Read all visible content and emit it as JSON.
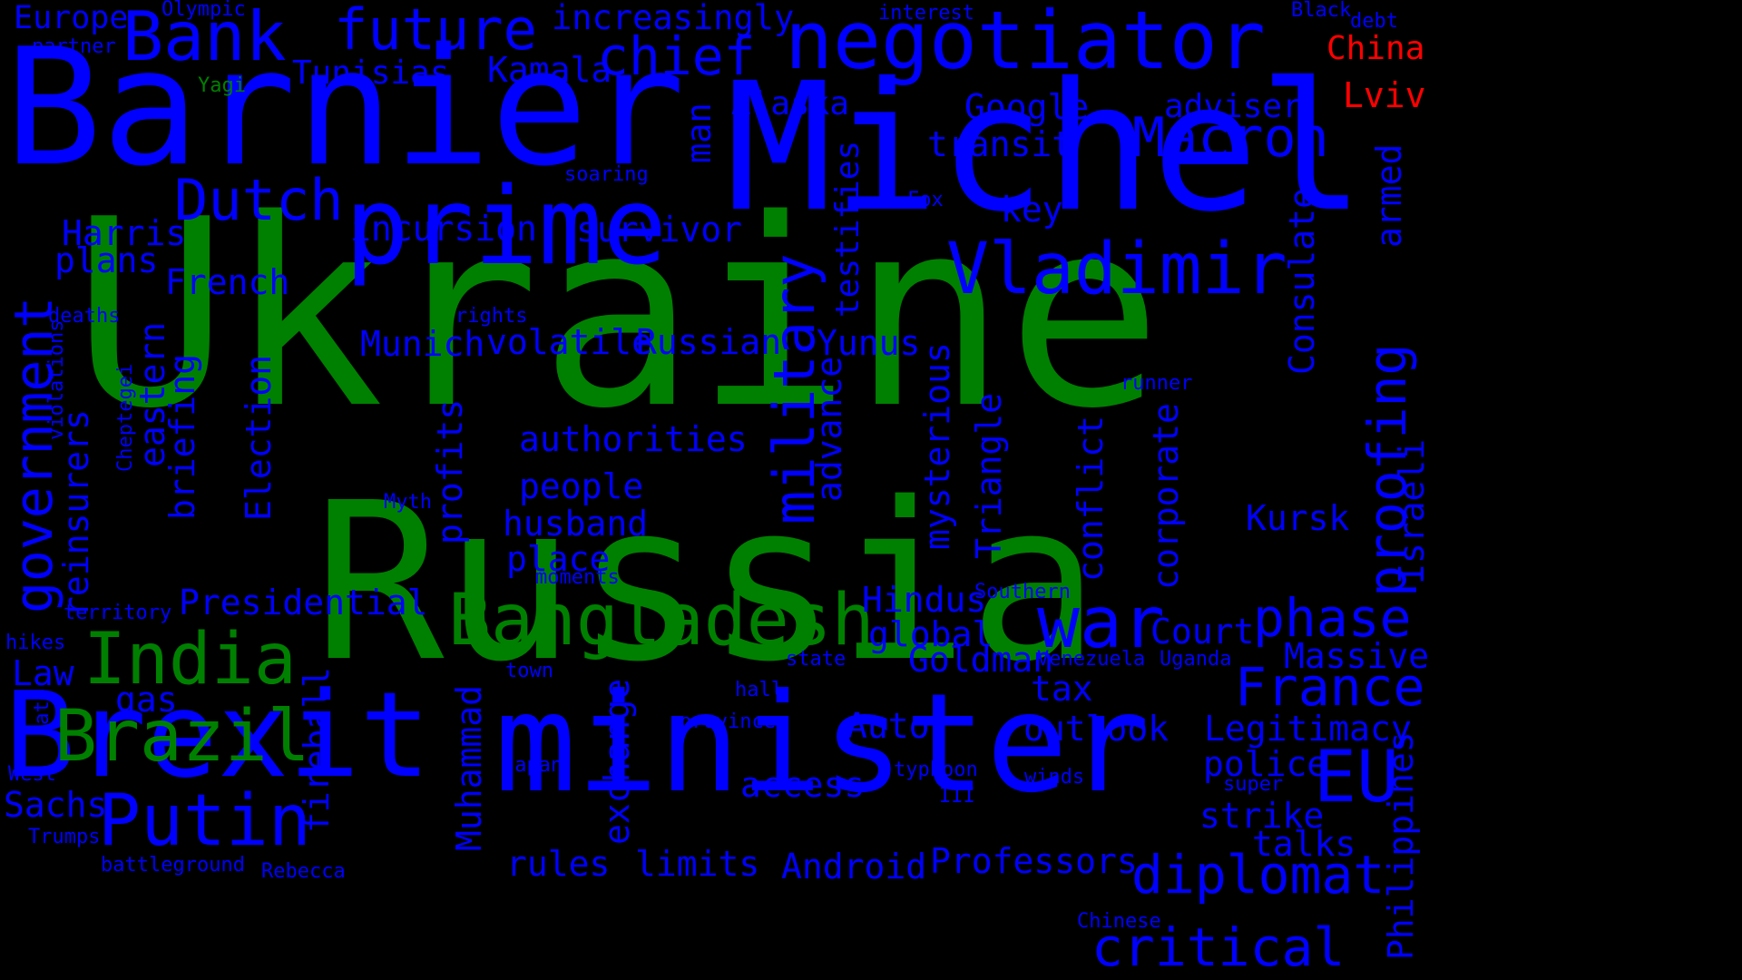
{
  "colors": {
    "background": "#000000",
    "blue": "#0000ff",
    "green": "#008000",
    "red": "#ff0000"
  },
  "words": [
    {
      "text": "Ukraine",
      "color": "green"
    },
    {
      "text": "Russia",
      "color": "green"
    },
    {
      "text": "Michel",
      "color": "blue"
    },
    {
      "text": "Barnier",
      "color": "blue"
    },
    {
      "text": "Brexit",
      "color": "blue"
    },
    {
      "text": "minister",
      "color": "blue"
    },
    {
      "text": "prime",
      "color": "blue"
    },
    {
      "text": "negotiator",
      "color": "blue"
    },
    {
      "text": "Bank",
      "color": "blue"
    },
    {
      "text": "future",
      "color": "blue"
    },
    {
      "text": "chief",
      "color": "blue"
    },
    {
      "text": "Kamala",
      "color": "blue"
    },
    {
      "text": "Tunisias",
      "color": "blue"
    },
    {
      "text": "increasingly",
      "color": "blue"
    },
    {
      "text": "Europe",
      "color": "blue"
    },
    {
      "text": "Olympic",
      "color": "blue"
    },
    {
      "text": "partner",
      "color": "blue"
    },
    {
      "text": "Yagi",
      "color": "green"
    },
    {
      "text": "interest",
      "color": "blue"
    },
    {
      "text": "Black",
      "color": "blue"
    },
    {
      "text": "debt",
      "color": "blue"
    },
    {
      "text": "China",
      "color": "red"
    },
    {
      "text": "Lviv",
      "color": "red"
    },
    {
      "text": "Alaska",
      "color": "blue"
    },
    {
      "text": "Google",
      "color": "blue"
    },
    {
      "text": "adviser",
      "color": "blue"
    },
    {
      "text": "Macron",
      "color": "blue"
    },
    {
      "text": "transit",
      "color": "blue"
    },
    {
      "text": "soaring",
      "color": "blue"
    },
    {
      "text": "man",
      "color": "blue"
    },
    {
      "text": "Fox",
      "color": "blue"
    },
    {
      "text": "key",
      "color": "blue"
    },
    {
      "text": "Dutch",
      "color": "blue"
    },
    {
      "text": "Harris",
      "color": "blue"
    },
    {
      "text": "plans",
      "color": "blue"
    },
    {
      "text": "French",
      "color": "blue"
    },
    {
      "text": "incursion",
      "color": "blue"
    },
    {
      "text": "survivor",
      "color": "blue"
    },
    {
      "text": "testifies",
      "color": "blue"
    },
    {
      "text": "Vladimir",
      "color": "blue"
    },
    {
      "text": "deaths",
      "color": "blue"
    },
    {
      "text": "rights",
      "color": "blue"
    },
    {
      "text": "Munich",
      "color": "blue"
    },
    {
      "text": "volatile",
      "color": "blue"
    },
    {
      "text": "Russian",
      "color": "blue"
    },
    {
      "text": "Yunus",
      "color": "blue"
    },
    {
      "text": "runner",
      "color": "blue"
    },
    {
      "text": "military",
      "color": "blue"
    },
    {
      "text": "government",
      "color": "blue"
    },
    {
      "text": "reinsurers",
      "color": "blue"
    },
    {
      "text": "violations",
      "color": "blue"
    },
    {
      "text": "Cheptegei",
      "color": "blue"
    },
    {
      "text": "eastern",
      "color": "blue"
    },
    {
      "text": "briefing",
      "color": "blue"
    },
    {
      "text": "Election",
      "color": "blue"
    },
    {
      "text": "Myth",
      "color": "blue"
    },
    {
      "text": "profits",
      "color": "blue"
    },
    {
      "text": "authorities",
      "color": "blue"
    },
    {
      "text": "people",
      "color": "blue"
    },
    {
      "text": "husband",
      "color": "blue"
    },
    {
      "text": "place",
      "color": "blue"
    },
    {
      "text": "moments",
      "color": "blue"
    },
    {
      "text": "advance",
      "color": "blue"
    },
    {
      "text": "mysterious",
      "color": "blue"
    },
    {
      "text": "Triangle",
      "color": "blue"
    },
    {
      "text": "conflict",
      "color": "blue"
    },
    {
      "text": "corporate",
      "color": "blue"
    },
    {
      "text": "Consulate",
      "color": "blue"
    },
    {
      "text": "armed",
      "color": "blue"
    },
    {
      "text": "proofing",
      "color": "blue"
    },
    {
      "text": "Israeli",
      "color": "blue"
    },
    {
      "text": "Kursk",
      "color": "blue"
    },
    {
      "text": "Bangladesh",
      "color": "green"
    },
    {
      "text": "war",
      "color": "blue"
    },
    {
      "text": "phase",
      "color": "blue"
    },
    {
      "text": "Hindus",
      "color": "blue"
    },
    {
      "text": "Southern",
      "color": "blue"
    },
    {
      "text": "global",
      "color": "blue"
    },
    {
      "text": "Court",
      "color": "blue"
    },
    {
      "text": "territory",
      "color": "blue"
    },
    {
      "text": "Presidential",
      "color": "blue"
    },
    {
      "text": "India",
      "color": "green"
    },
    {
      "text": "hikes",
      "color": "blue"
    },
    {
      "text": "Law",
      "color": "blue"
    },
    {
      "text": "gas",
      "color": "blue"
    },
    {
      "text": "Brazil",
      "color": "green"
    },
    {
      "text": "rate",
      "color": "blue"
    },
    {
      "text": "fireball",
      "color": "blue"
    },
    {
      "text": "Muhammad",
      "color": "blue"
    },
    {
      "text": "exchange",
      "color": "blue"
    },
    {
      "text": "town",
      "color": "blue"
    },
    {
      "text": "state",
      "color": "blue"
    },
    {
      "text": "Goldman",
      "color": "blue"
    },
    {
      "text": "Venezuela",
      "color": "blue"
    },
    {
      "text": "Uganda",
      "color": "blue"
    },
    {
      "text": "Massive",
      "color": "blue"
    },
    {
      "text": "France",
      "color": "blue"
    },
    {
      "text": "tax",
      "color": "blue"
    },
    {
      "text": "hall",
      "color": "blue"
    },
    {
      "text": "provinces",
      "color": "blue"
    },
    {
      "text": "Auto",
      "color": "blue"
    },
    {
      "text": "outlook",
      "color": "blue"
    },
    {
      "text": "Legitimacy",
      "color": "blue"
    },
    {
      "text": "Philippines",
      "color": "blue"
    },
    {
      "text": "West",
      "color": "blue"
    },
    {
      "text": "Sachs",
      "color": "blue"
    },
    {
      "text": "Putin",
      "color": "blue"
    },
    {
      "text": "Trumps",
      "color": "blue"
    },
    {
      "text": "Japan",
      "color": "blue"
    },
    {
      "text": "typhoon",
      "color": "blue"
    },
    {
      "text": "III",
      "color": "blue"
    },
    {
      "text": "winds",
      "color": "blue"
    },
    {
      "text": "police",
      "color": "blue"
    },
    {
      "text": "EU",
      "color": "blue"
    },
    {
      "text": "access",
      "color": "blue"
    },
    {
      "text": "super",
      "color": "blue"
    },
    {
      "text": "strike",
      "color": "blue"
    },
    {
      "text": "talks",
      "color": "blue"
    },
    {
      "text": "battleground",
      "color": "blue"
    },
    {
      "text": "Rebecca",
      "color": "blue"
    },
    {
      "text": "rules",
      "color": "blue"
    },
    {
      "text": "limits",
      "color": "blue"
    },
    {
      "text": "Android",
      "color": "blue"
    },
    {
      "text": "Professors",
      "color": "blue"
    },
    {
      "text": "diplomat",
      "color": "blue"
    },
    {
      "text": "Chinese",
      "color": "blue"
    },
    {
      "text": "critical",
      "color": "blue"
    }
  ]
}
